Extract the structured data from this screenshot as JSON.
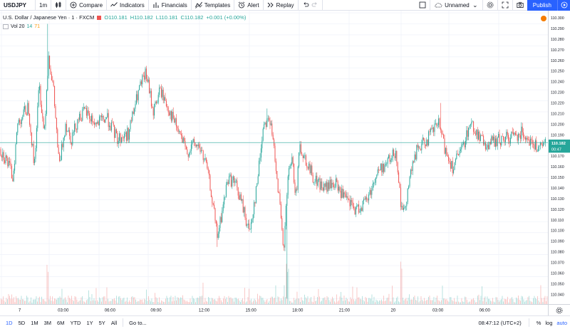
{
  "toolbar": {
    "symbol": "USDJPY",
    "interval": "1m",
    "candle_icon": "candles-icon",
    "compare": "Compare",
    "indicators": "Indicators",
    "financials": "Financials",
    "templates": "Templates",
    "alert": "Alert",
    "replay": "Replay",
    "layout_name": "Unnamed",
    "publish": "Publish"
  },
  "legend": {
    "name": "U.S. Dollar / Japanese Yen · 1 · FXCM",
    "open": "O110.181",
    "high": "H110.182",
    "low": "L110.181",
    "close": "C110.182",
    "change": "+0.001 (+0.00%)",
    "vol_label": "Vol 20",
    "vol_a": "14",
    "vol_b": "71"
  },
  "price_scale": {
    "ticks": [
      "110.300",
      "110.290",
      "110.280",
      "110.270",
      "110.260",
      "110.250",
      "110.240",
      "110.230",
      "110.220",
      "110.210",
      "110.200",
      "110.190",
      "110.180",
      "110.170",
      "110.160",
      "110.150",
      "110.140",
      "110.130",
      "110.120",
      "110.110",
      "110.100",
      "110.090",
      "110.080",
      "110.070",
      "110.060",
      "110.050",
      "110.040"
    ],
    "current_price": "110.182",
    "countdown": "00:47"
  },
  "time_axis": {
    "labels": [
      "7",
      "03:00",
      "06:00",
      "09:00",
      "12:00",
      "15:00",
      "18:00",
      "21:00",
      "20",
      "03:00",
      "06:00"
    ]
  },
  "bottombar": {
    "ranges": [
      "1D",
      "5D",
      "1M",
      "3M",
      "6M",
      "YTD",
      "1Y",
      "5Y",
      "All"
    ],
    "goto": "Go to...",
    "clock": "08:47:12 (UTC+2)",
    "percent": "%",
    "log": "log",
    "auto": "auto"
  },
  "colors": {
    "up": "#26a69a",
    "down": "#ef5350",
    "accent": "#2962ff"
  },
  "chart_data": {
    "type": "candlestick",
    "ylim": [
      110.035,
      110.302
    ],
    "anchors": [
      [
        0,
        110.176
      ],
      [
        10,
        110.165
      ],
      [
        18,
        110.15
      ],
      [
        25,
        110.2
      ],
      [
        40,
        110.215
      ],
      [
        48,
        110.16
      ],
      [
        55,
        110.235
      ],
      [
        62,
        110.19
      ],
      [
        68,
        110.262
      ],
      [
        75,
        110.23
      ],
      [
        83,
        110.16
      ],
      [
        92,
        110.2
      ],
      [
        100,
        110.185
      ],
      [
        110,
        110.205
      ],
      [
        120,
        110.21
      ],
      [
        135,
        110.198
      ],
      [
        150,
        110.205
      ],
      [
        165,
        110.185
      ],
      [
        180,
        110.19
      ],
      [
        195,
        110.23
      ],
      [
        205,
        110.245
      ],
      [
        215,
        110.21
      ],
      [
        225,
        110.23
      ],
      [
        235,
        110.215
      ],
      [
        245,
        110.2
      ],
      [
        255,
        110.185
      ],
      [
        262,
        110.172
      ],
      [
        270,
        110.18
      ],
      [
        280,
        110.178
      ],
      [
        290,
        110.16
      ],
      [
        298,
        110.13
      ],
      [
        305,
        110.095
      ],
      [
        312,
        110.12
      ],
      [
        320,
        110.15
      ],
      [
        330,
        110.145
      ],
      [
        340,
        110.125
      ],
      [
        350,
        110.1
      ],
      [
        360,
        110.14
      ],
      [
        370,
        110.2
      ],
      [
        378,
        110.205
      ],
      [
        386,
        110.17
      ],
      [
        392,
        110.13
      ],
      [
        398,
        110.08
      ],
      [
        404,
        110.15
      ],
      [
        410,
        110.165
      ],
      [
        416,
        110.13
      ],
      [
        420,
        110.18
      ],
      [
        430,
        110.165
      ],
      [
        440,
        110.15
      ],
      [
        455,
        110.14
      ],
      [
        470,
        110.145
      ],
      [
        485,
        110.13
      ],
      [
        500,
        110.12
      ],
      [
        515,
        110.13
      ],
      [
        530,
        110.155
      ],
      [
        545,
        110.165
      ],
      [
        556,
        110.175
      ],
      [
        562,
        110.13
      ],
      [
        566,
        110.115
      ],
      [
        575,
        110.15
      ],
      [
        585,
        110.175
      ],
      [
        600,
        110.185
      ],
      [
        615,
        110.2
      ],
      [
        625,
        110.175
      ],
      [
        635,
        110.16
      ],
      [
        648,
        110.175
      ],
      [
        660,
        110.2
      ],
      [
        670,
        110.19
      ],
      [
        680,
        110.18
      ],
      [
        690,
        110.182
      ],
      [
        705,
        110.185
      ],
      [
        720,
        110.188
      ],
      [
        735,
        110.192
      ],
      [
        748,
        110.18
      ],
      [
        758,
        110.176
      ],
      [
        766,
        110.182
      ]
    ],
    "spikes": [
      [
        67,
        110.29
      ],
      [
        403,
        110.04
      ],
      [
        563,
        110.062
      ],
      [
        305,
        110.087
      ],
      [
        618,
        110.218
      ],
      [
        375,
        110.213
      ]
    ],
    "last_price": 110.182,
    "time_labels": [
      "7",
      "03:00",
      "06:00",
      "09:00",
      "12:00",
      "15:00",
      "18:00",
      "21:00",
      "20",
      "03:00",
      "06:00"
    ]
  }
}
